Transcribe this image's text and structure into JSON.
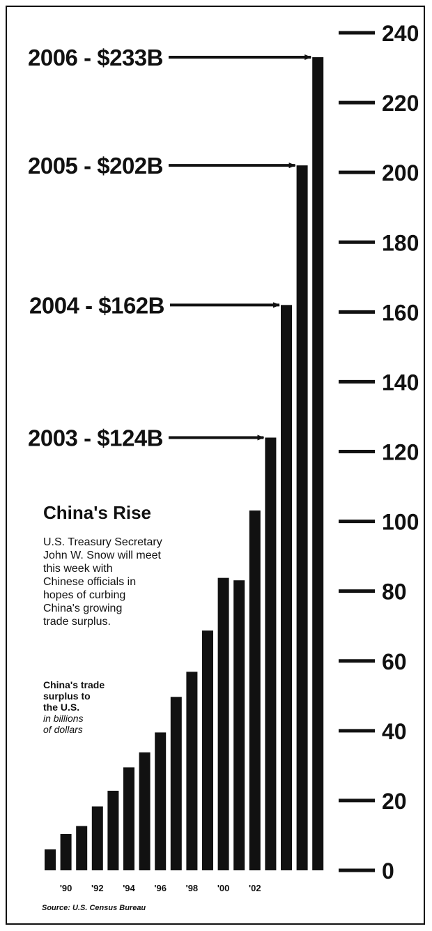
{
  "chart_data": {
    "type": "bar",
    "title": "China's Rise",
    "description_lines": [
      "U.S. Treasury Secretary",
      "John W. Snow will meet",
      "this week with",
      "Chinese officials in",
      "hopes of curbing",
      "China's growing",
      "trade surplus."
    ],
    "subtitle_lines": [
      "China's trade",
      "surplus to",
      "the U.S."
    ],
    "unit_lines": [
      "in billions",
      "of dollars"
    ],
    "source": "Source: U.S. Census Bureau",
    "categories": [
      "1989",
      "1990",
      "1991",
      "1992",
      "1993",
      "1994",
      "1995",
      "1996",
      "1997",
      "1998",
      "1999",
      "2000",
      "2001",
      "2002",
      "2003",
      "2004",
      "2005",
      "2006"
    ],
    "values": [
      6,
      10.4,
      12.7,
      18.3,
      22.8,
      29.5,
      33.8,
      39.5,
      49.7,
      56.9,
      68.7,
      83.8,
      83.1,
      103.1,
      124,
      162,
      202,
      233
    ],
    "x_tick_labels": [
      {
        "category": "1990",
        "label": "'90"
      },
      {
        "category": "1992",
        "label": "'92"
      },
      {
        "category": "1994",
        "label": "'94"
      },
      {
        "category": "1996",
        "label": "'96"
      },
      {
        "category": "1998",
        "label": "'98"
      },
      {
        "category": "2000",
        "label": "'00"
      },
      {
        "category": "2002",
        "label": "'02"
      }
    ],
    "y_ticks": [
      0,
      20,
      40,
      60,
      80,
      100,
      120,
      140,
      160,
      180,
      200,
      220,
      240
    ],
    "ylim": [
      0,
      240
    ],
    "annotations": [
      {
        "category": "2006",
        "text": "2006 - $233B"
      },
      {
        "category": "2005",
        "text": "2005 - $202B"
      },
      {
        "category": "2004",
        "text": "2004 - $162B"
      },
      {
        "category": "2003",
        "text": "2003 - $124B"
      }
    ],
    "grid": false,
    "bar_color": "#111111"
  }
}
